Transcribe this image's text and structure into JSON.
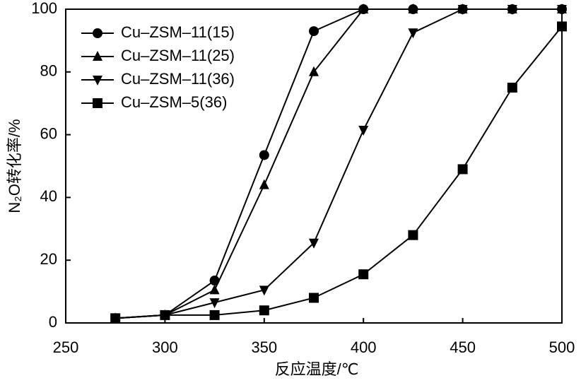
{
  "chart_data": {
    "type": "line",
    "xlabel": "反应温度/℃",
    "ylabel": "N₂O转化率/%",
    "x": [
      275,
      300,
      325,
      350,
      375,
      400,
      425,
      450,
      475,
      500
    ],
    "series": [
      {
        "name": "Cu–ZSM–11(15)",
        "color": "#000000",
        "marker": "circle",
        "values": [
          1.5,
          2.5,
          13.5,
          53.5,
          93,
          100,
          100,
          100,
          100,
          100
        ]
      },
      {
        "name": "Cu–ZSM–11(25)",
        "color": "#000000",
        "marker": "triangle-up",
        "values": [
          1.5,
          2.5,
          10.5,
          44,
          80,
          100,
          100,
          100,
          100,
          100
        ]
      },
      {
        "name": "Cu–ZSM–11(36)",
        "color": "#000000",
        "marker": "triangle-down",
        "values": [
          1.5,
          2.5,
          6.5,
          10.5,
          25.5,
          61.5,
          92.5,
          100,
          100,
          100
        ]
      },
      {
        "name": "Cu–ZSM–5(36)",
        "color": "#000000",
        "marker": "square",
        "values": [
          1.5,
          2.5,
          2.5,
          4,
          8,
          15.5,
          28,
          49,
          75,
          94.5
        ]
      }
    ],
    "xlim": [
      250,
      500
    ],
    "xticks": [
      250,
      300,
      350,
      400,
      450,
      500
    ],
    "ylim": [
      0,
      100
    ],
    "yticks": [
      0,
      20,
      40,
      60,
      80,
      100
    ],
    "legend": "upper left"
  }
}
